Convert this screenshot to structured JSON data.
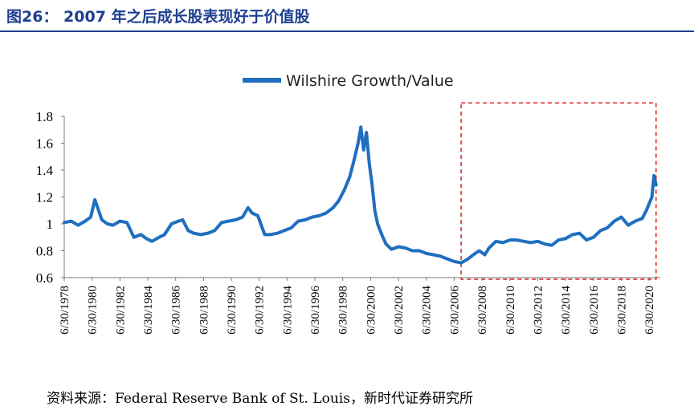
{
  "figure": {
    "title": "图26： 2007 年之后成长股表现好于价值股",
    "source": "资料来源：Federal Reserve Bank of St. Louis，新时代证券研究所"
  },
  "colors": {
    "title": "#1f3f8f",
    "series": "#1f6fbf",
    "highlight_box": "#e02020"
  },
  "chart_data": {
    "type": "line",
    "title": "",
    "xlabel": "",
    "ylabel": "",
    "ylim": [
      0.6,
      1.8
    ],
    "yticks": [
      "0.6",
      "0.8",
      "1",
      "1.2",
      "1.4",
      "1.6",
      "1.8"
    ],
    "xlim": [
      1978.5,
      2021.3
    ],
    "xticks": [
      "6/30/1978",
      "6/30/1980",
      "6/30/1982",
      "6/30/1984",
      "6/30/1986",
      "6/30/1988",
      "6/30/1990",
      "6/30/1992",
      "6/30/1994",
      "6/30/1996",
      "6/30/1998",
      "6/30/2000",
      "6/30/2002",
      "6/30/2004",
      "6/30/2006",
      "6/30/2008",
      "6/30/2010",
      "6/30/2012",
      "6/30/2014",
      "6/30/2016",
      "6/30/2018",
      "6/30/2020"
    ],
    "grid": false,
    "legend": "top-center",
    "highlight_range": {
      "x": [
        2007.0,
        2021.0
      ],
      "y": [
        0.6,
        1.9
      ]
    },
    "series": [
      {
        "name": "Wilshire Growth/Value",
        "x": [
          1978.5,
          1979.0,
          1979.5,
          1980.0,
          1980.4,
          1980.7,
          1981.2,
          1981.6,
          1982.0,
          1982.5,
          1983.0,
          1983.5,
          1984.0,
          1984.4,
          1984.8,
          1985.3,
          1985.7,
          1986.2,
          1986.7,
          1987.0,
          1987.4,
          1987.8,
          1988.3,
          1988.8,
          1989.3,
          1989.8,
          1990.3,
          1990.8,
          1991.3,
          1991.7,
          1992.0,
          1992.4,
          1992.9,
          1993.3,
          1993.8,
          1994.3,
          1994.8,
          1995.3,
          1995.8,
          1996.3,
          1996.8,
          1997.3,
          1997.8,
          1998.2,
          1998.6,
          1999.0,
          1999.3,
          1999.6,
          1999.8,
          2000.0,
          2000.2,
          2000.4,
          2000.6,
          2000.8,
          2001.0,
          2001.3,
          2001.6,
          2002.0,
          2002.5,
          2003.0,
          2003.5,
          2004.0,
          2004.5,
          2005.0,
          2005.5,
          2006.0,
          2006.5,
          2007.0,
          2007.5,
          2008.0,
          2008.3,
          2008.7,
          2009.0,
          2009.5,
          2010.0,
          2010.5,
          2011.0,
          2011.5,
          2012.0,
          2012.5,
          2013.0,
          2013.5,
          2014.0,
          2014.5,
          2015.0,
          2015.5,
          2016.0,
          2016.5,
          2017.0,
          2017.5,
          2018.0,
          2018.5,
          2019.0,
          2019.5,
          2020.0,
          2020.3,
          2020.5,
          2020.7,
          2020.85,
          2021.0
        ],
        "values": [
          1.01,
          1.02,
          0.99,
          1.02,
          1.05,
          1.18,
          1.03,
          1.0,
          0.99,
          1.02,
          1.01,
          0.9,
          0.92,
          0.89,
          0.87,
          0.9,
          0.92,
          1.0,
          1.02,
          1.03,
          0.95,
          0.93,
          0.92,
          0.93,
          0.95,
          1.01,
          1.02,
          1.03,
          1.05,
          1.12,
          1.08,
          1.06,
          0.92,
          0.92,
          0.93,
          0.95,
          0.97,
          1.02,
          1.03,
          1.05,
          1.06,
          1.08,
          1.12,
          1.17,
          1.25,
          1.35,
          1.47,
          1.6,
          1.72,
          1.55,
          1.68,
          1.45,
          1.3,
          1.1,
          1.0,
          0.92,
          0.85,
          0.81,
          0.83,
          0.82,
          0.8,
          0.8,
          0.78,
          0.77,
          0.76,
          0.74,
          0.72,
          0.71,
          0.74,
          0.78,
          0.8,
          0.77,
          0.82,
          0.87,
          0.86,
          0.88,
          0.88,
          0.87,
          0.86,
          0.87,
          0.85,
          0.84,
          0.88,
          0.89,
          0.92,
          0.93,
          0.88,
          0.9,
          0.95,
          0.97,
          1.02,
          1.05,
          0.99,
          1.02,
          1.04,
          1.1,
          1.15,
          1.2,
          1.36,
          1.29
        ]
      }
    ]
  }
}
